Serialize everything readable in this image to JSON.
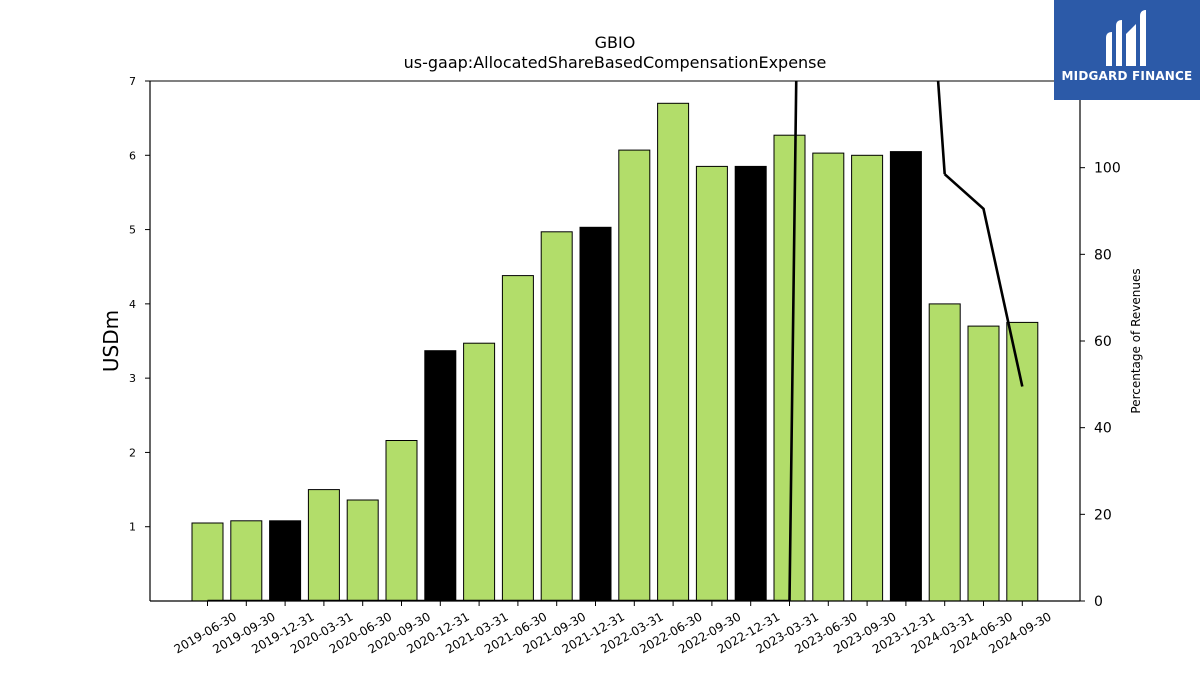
{
  "chart_data": {
    "type": "bar",
    "title": "GBIO",
    "subtitle": "us-gaap:AllocatedShareBasedCompensationExpense",
    "ylabel": "USDm",
    "y2label": "Percentage of Revenues",
    "categories": [
      "2019-06-30",
      "2019-09-30",
      "2019-12-31",
      "2020-03-31",
      "2020-06-30",
      "2020-09-30",
      "2020-12-31",
      "2021-03-31",
      "2021-06-30",
      "2021-09-30",
      "2021-12-31",
      "2022-03-31",
      "2022-06-30",
      "2022-09-30",
      "2022-12-31",
      "2023-03-31",
      "2023-06-30",
      "2023-09-30",
      "2023-12-31",
      "2024-03-31",
      "2024-06-30",
      "2024-09-30"
    ],
    "series": [
      {
        "values": [
          1.05,
          1.08,
          1.08,
          1.5,
          1.36,
          2.16,
          3.37,
          3.47,
          4.38,
          4.97,
          5.03,
          6.07,
          6.7,
          5.85,
          5.85,
          6.27,
          6.03,
          6.0,
          6.05,
          4.0,
          3.7,
          3.75
        ],
        "bar_colors": [
          "#b2dd6a",
          "#b2dd6a",
          "#000000",
          "#b2dd6a",
          "#b2dd6a",
          "#b2dd6a",
          "#000000",
          "#b2dd6a",
          "#b2dd6a",
          "#b2dd6a",
          "#000000",
          "#b2dd6a",
          "#b2dd6a",
          "#b2dd6a",
          "#000000",
          "#b2dd6a",
          "#b2dd6a",
          "#b2dd6a",
          "#000000",
          "#b2dd6a",
          "#b2dd6a",
          "#b2dd6a"
        ]
      },
      {
        "type": "line",
        "axis": "right",
        "color": "#000000",
        "values": [
          0,
          0,
          0,
          0,
          0,
          0,
          0,
          0,
          0,
          0,
          0,
          0,
          0,
          0,
          0,
          0,
          null,
          null,
          null,
          98.5,
          90.5,
          49.5
        ]
      }
    ],
    "ylim": [
      0,
      7
    ],
    "yticks": [
      1,
      2,
      3,
      4,
      5,
      6,
      7
    ],
    "y2lim": [
      0,
      120
    ],
    "y2ticks": [
      0,
      20,
      40,
      60,
      80,
      100
    ],
    "grid": false
  },
  "logo": {
    "text": "MIDGARD FINANCE",
    "background": "#2c5aa8"
  }
}
